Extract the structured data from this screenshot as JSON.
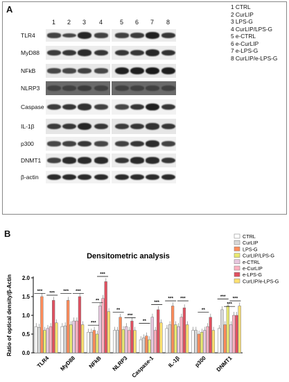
{
  "panel_a": {
    "label": "A",
    "lane_numbers": [
      "1",
      "2",
      "3",
      "4",
      "5",
      "6",
      "7",
      "8"
    ],
    "legend": [
      "1 CTRL",
      "2 CurLIP",
      "3 LPS-G",
      "4 CurLIP/LPS-G",
      "5 e-CTRL",
      "6 e-CurLIP",
      "7 e-LPS-G",
      "8 CurLIP/e-LPS-G"
    ],
    "rows": [
      {
        "label": "TLR4",
        "band_levels": [
          0.5,
          0.45,
          0.75,
          0.5,
          0.5,
          0.55,
          0.8,
          0.6
        ]
      },
      {
        "label": "MyD88",
        "band_levels": [
          0.55,
          0.6,
          0.7,
          0.6,
          0.6,
          0.6,
          0.75,
          0.65
        ]
      },
      {
        "label": "NFkB",
        "band_levels": [
          0.45,
          0.45,
          0.5,
          0.45,
          0.8,
          0.8,
          0.85,
          0.8
        ]
      },
      {
        "label": "NLRP3",
        "band_levels": [
          0.5,
          0.5,
          0.55,
          0.5,
          0.5,
          0.5,
          0.5,
          0.5
        ]
      },
      {
        "label": "Caspase 1",
        "band_levels": [
          0.55,
          0.6,
          0.65,
          0.5,
          0.45,
          0.6,
          0.8,
          0.6
        ]
      },
      {
        "label": "IL-1β",
        "band_levels": [
          0.55,
          0.6,
          0.75,
          0.6,
          0.55,
          0.6,
          0.65,
          0.6
        ]
      },
      {
        "label": "p300",
        "band_levels": [
          0.45,
          0.5,
          0.6,
          0.45,
          0.5,
          0.6,
          0.7,
          0.5
        ]
      },
      {
        "label": "DNMT1",
        "band_levels": [
          0.5,
          0.7,
          0.7,
          0.7,
          0.6,
          0.7,
          0.7,
          0.6
        ]
      },
      {
        "label": "β-actin",
        "band_levels": [
          0.7,
          0.7,
          0.7,
          0.7,
          0.7,
          0.7,
          0.7,
          0.7
        ]
      }
    ]
  },
  "panel_b": {
    "label": "B",
    "colors": [
      "#ffffff",
      "#d8d8d8",
      "#ff8c5a",
      "#e8e870",
      "#e8c8e0",
      "#ffb0c0",
      "#e05060",
      "#ffe070"
    ]
  },
  "chart_data": {
    "type": "bar",
    "title": "Densitometric analysis",
    "ylabel": "Ratio of optical density/β-Actin",
    "xlabel": "",
    "ylim": [
      0,
      2.0
    ],
    "yticks": [
      "0.0",
      "0.5",
      "1.0",
      "1.5",
      "2.0"
    ],
    "categories": [
      "TLR4",
      "MyD88",
      "NFkB",
      "NLRP3",
      "Caspase-1",
      "IL-1β",
      "p300",
      "DNMT1"
    ],
    "series": [
      {
        "name": "CTRL",
        "values": [
          0.7,
          0.7,
          0.55,
          0.6,
          0.35,
          0.65,
          0.6,
          0.65
        ]
      },
      {
        "name": "CurLIP",
        "values": [
          0.68,
          0.72,
          0.55,
          0.6,
          0.4,
          0.75,
          0.6,
          1.15
        ]
      },
      {
        "name": "LPS-G",
        "values": [
          1.5,
          1.4,
          0.6,
          0.95,
          0.45,
          1.25,
          0.5,
          0.75
        ]
      },
      {
        "name": "CurLIP/LPS-G",
        "values": [
          0.6,
          0.75,
          0.5,
          0.62,
          0.35,
          0.75,
          0.55,
          1.25
        ]
      },
      {
        "name": "e-CTRL",
        "values": [
          0.65,
          0.85,
          1.25,
          0.7,
          0.95,
          0.7,
          0.6,
          0.75
        ]
      },
      {
        "name": "e-CurLIP",
        "values": [
          0.7,
          0.85,
          1.45,
          0.6,
          0.6,
          0.95,
          0.7,
          1.0
        ]
      },
      {
        "name": "e-LPS-G",
        "values": [
          1.4,
          1.5,
          1.9,
          0.85,
          1.15,
          1.2,
          0.95,
          1.0
        ]
      },
      {
        "name": "CurLIP/e-LPS-G",
        "values": [
          0.8,
          0.75,
          1.1,
          0.6,
          0.8,
          0.75,
          0.6,
          1.25
        ]
      }
    ],
    "significance": [
      "***",
      "***",
      "***",
      "***",
      "***",
      "***",
      "**",
      "**",
      "***",
      "**",
      "***",
      "***",
      "***",
      "**",
      "***",
      "***",
      "***"
    ]
  }
}
